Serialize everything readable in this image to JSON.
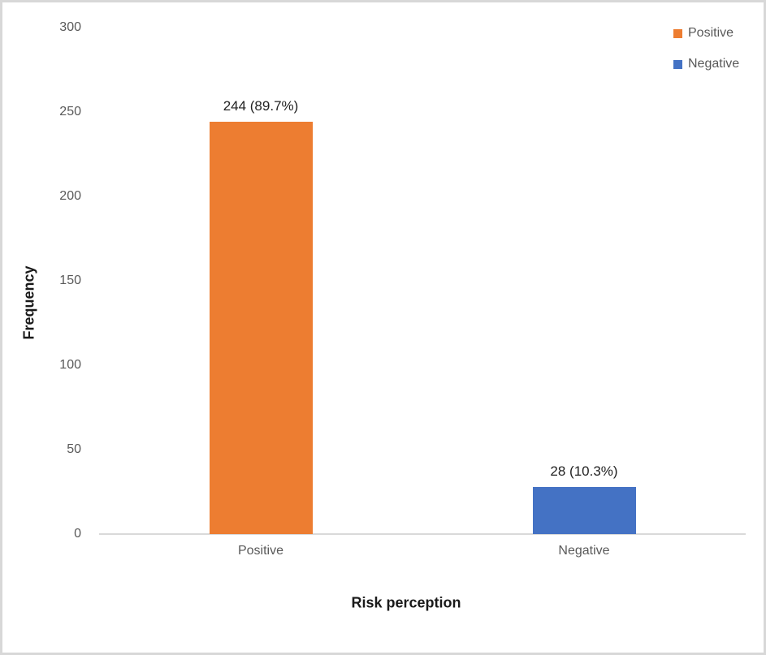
{
  "figure": {
    "background": "#ffffff",
    "border_color": "#d8d8d8"
  },
  "chart_data": {
    "type": "bar",
    "title": "",
    "categories": [
      "Positive",
      "Negative"
    ],
    "values": [
      244,
      28
    ],
    "bar_labels": [
      "244 (89.7%)",
      "28 (10.3%)"
    ],
    "bar_colors": [
      "#ED7D31",
      "#4472C4"
    ],
    "xlabel": "Risk perception",
    "ylabel": "Frequency",
    "ylim": [
      0,
      300
    ],
    "yticks": [
      0,
      50,
      100,
      150,
      200,
      250,
      300
    ],
    "grid": false,
    "axis_line_color": "#d9d9d9",
    "tick_label_color": "#595959",
    "legend": {
      "position": "top-right",
      "entries": [
        {
          "label": "Positive",
          "color": "#ED7D31"
        },
        {
          "label": "Negative",
          "color": "#4472C4"
        }
      ]
    }
  }
}
